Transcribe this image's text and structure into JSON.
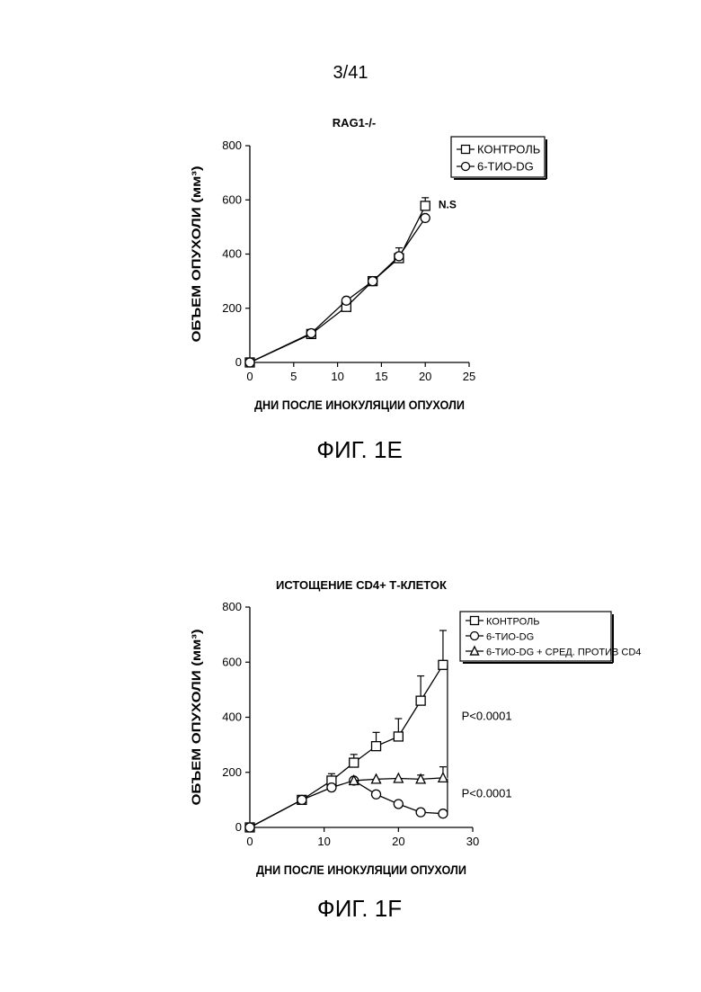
{
  "page_number": "3/41",
  "figures": [
    {
      "caption": "ФИГ. 1E"
    },
    {
      "caption": "ФИГ. 1F"
    }
  ],
  "chart_data": [
    {
      "type": "line",
      "title": "RAG1-/-",
      "xlabel": "ДНИ ПОСЛЕ ИНОКУЛЯЦИИ ОПУХОЛИ",
      "ylabel": "ОБЪЕМ ОПУХОЛИ (мм³)",
      "xlim": [
        0,
        25
      ],
      "ylim": [
        0,
        800
      ],
      "xticks": [
        0,
        5,
        10,
        15,
        20,
        25
      ],
      "yticks": [
        0,
        200,
        400,
        600,
        800
      ],
      "legend_position": "top-right",
      "series": [
        {
          "name": "КОНТРОЛЬ",
          "marker": "square",
          "x": [
            0,
            7,
            11,
            14,
            17,
            20
          ],
          "y": [
            0,
            105,
            205,
            300,
            385,
            578
          ],
          "err": [
            0,
            0,
            0,
            0,
            38,
            30
          ]
        },
        {
          "name": "6-ТИО-DG",
          "marker": "circle",
          "x": [
            0,
            7,
            11,
            14,
            17,
            20
          ],
          "y": [
            0,
            108,
            228,
            300,
            392,
            533
          ],
          "err": [
            0,
            0,
            0,
            0,
            0,
            0
          ]
        }
      ],
      "annotations": [
        {
          "text": "N.S",
          "x": 21.5,
          "y": 570
        }
      ]
    },
    {
      "type": "line",
      "title": "ИСТОЩЕНИЕ CD4+ Т-КЛЕТОК",
      "xlabel": "ДНИ ПОСЛЕ ИНОКУЛЯЦИИ ОПУХОЛИ",
      "ylabel": "ОБЪЕМ ОПУХОЛИ (мм³)",
      "xlim": [
        0,
        30
      ],
      "ylim": [
        0,
        800
      ],
      "xticks": [
        0,
        10,
        20,
        30
      ],
      "yticks": [
        0,
        200,
        400,
        600,
        800
      ],
      "legend_position": "top-right",
      "series": [
        {
          "name": "КОНТРОЛЬ",
          "marker": "square",
          "x": [
            0,
            7,
            11,
            14,
            17,
            20,
            23,
            26
          ],
          "y": [
            0,
            100,
            170,
            235,
            295,
            330,
            460,
            590
          ],
          "err": [
            0,
            0,
            25,
            30,
            50,
            65,
            90,
            125
          ]
        },
        {
          "name": "6-ТИО-DG",
          "marker": "circle",
          "x": [
            0,
            7,
            11,
            14,
            17,
            20,
            23,
            26
          ],
          "y": [
            0,
            100,
            145,
            170,
            120,
            85,
            55,
            50
          ],
          "err": [
            0,
            0,
            0,
            0,
            0,
            0,
            0,
            0
          ]
        },
        {
          "name": "6-ТИО-DG + СРЕД. ПРОТИВ CD4",
          "marker": "triangle",
          "x": [
            14,
            17,
            20,
            23,
            26
          ],
          "y": [
            170,
            175,
            178,
            175,
            180
          ],
          "err": [
            0,
            0,
            0,
            15,
            40
          ]
        }
      ],
      "annotations": [
        {
          "text": "P<0.0001",
          "x": 28.5,
          "y": 390
        },
        {
          "text": "P<0.0001",
          "x": 28.5,
          "y": 110
        }
      ]
    }
  ]
}
